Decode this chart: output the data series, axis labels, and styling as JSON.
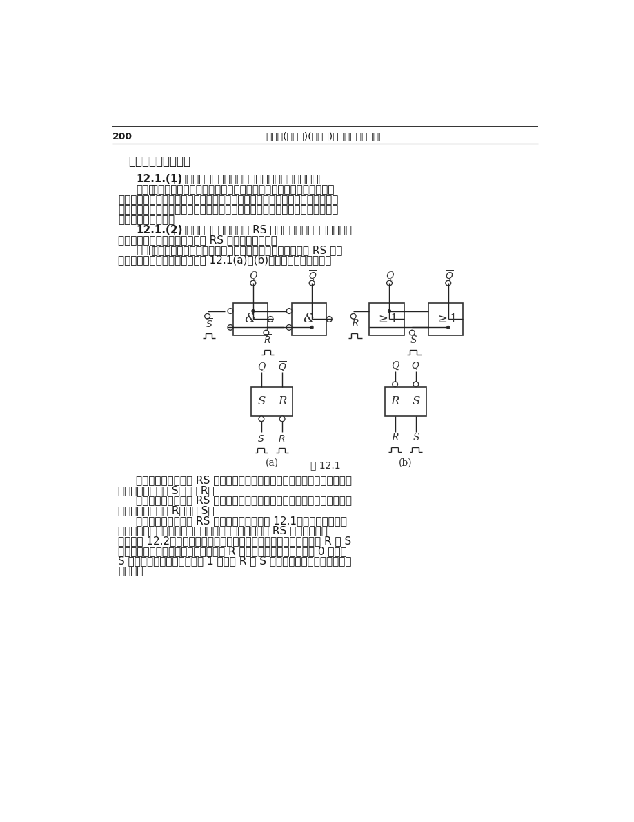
{
  "page_number": "200",
  "header_text": "电工学(少学时)(第四版)学习辅导与习题解答",
  "section_title": "三、分析与思考解答",
  "bg_color": "#ffffff",
  "text_color": "#1a1a1a",
  "lines": [
    {
      "type": "q_bold",
      "indent": 106,
      "bold": "12.1.(1)",
      "rest": "  为什么说门电路没有记忆功能，而触发器有记忆功能？"
    },
    {
      "type": "a_bold",
      "indent": 106,
      "bold": "【答】",
      "rest": " 由于门电路的输出电平的高低仅取决于当时的输入，与以前的输出"
    },
    {
      "type": "normal",
      "indent": 72,
      "text": "状态无关，所以说是一种无记忆功能的逻辑部件。而触发器则不同，其输出电平"
    },
    {
      "type": "normal",
      "indent": 72,
      "text": "的高低不仅取决于当时的输入，还与以前的输出状态有关，因而，它是一种有记"
    },
    {
      "type": "normal",
      "indent": 72,
      "text": "忆功能的逻辑部件。"
    },
    {
      "type": "q_bold",
      "indent": 106,
      "bold": "12.1.(2)",
      "rest": "  试分析由或非门组成的基本 RS 触发器的逻辑功能，列出其真"
    },
    {
      "type": "normal",
      "indent": 72,
      "text": "値表，并与由与非门组成的基本 RS 触发器做一比较。"
    },
    {
      "type": "a_bold",
      "indent": 106,
      "bold": "【答】",
      "rest": " 为便于比较，今将由与非门组成的和由或非门组成的基本 RS 触发"
    },
    {
      "type": "normal",
      "indent": 72,
      "text": "器的电路和逻辑符号分别画在图 12.1(a)、(b)中。它们有以下不同："
    }
  ],
  "after_lines": [
    {
      "indent": 106,
      "text": "由与非门组成的基本 RS 触发器，输入信号为低电平有效，逻辑符号的输入"
    },
    {
      "indent": 72,
      "text": "端加有小圆。左为 S，右为 R。"
    },
    {
      "indent": 106,
      "text": "由或非门组成的基本 RS 触发器，输入信号为高电平有效，逻辑符号的输入"
    },
    {
      "indent": 72,
      "text": "端不加小圆。左为 R，右为 S。"
    },
    {
      "indent": 106,
      "text": "由与非门组成的基本 RS 触发器的真値表见表 12.1。根据或非门的逻"
    },
    {
      "indent": 72,
      "text": "辑功能，分四种输入情况可以求得由或非门组成的基本 RS 触发器的真値"
    },
    {
      "indent": 72,
      "text": "表，见表 12.2。它们貌似不同，但实际上逻辑功能相同，它们都是在 R 和 S"
    },
    {
      "indent": 72,
      "text": "端无信号输入时，触发器保持原态；在 R 端有信号输入时，触发器为 0 态；在"
    },
    {
      "indent": 72,
      "text": "S 端有信号输入时，触发器为 1 态；在 R 和 S 端都有信号输入时，触发器状"
    },
    {
      "indent": 72,
      "text": "态不定。"
    }
  ]
}
